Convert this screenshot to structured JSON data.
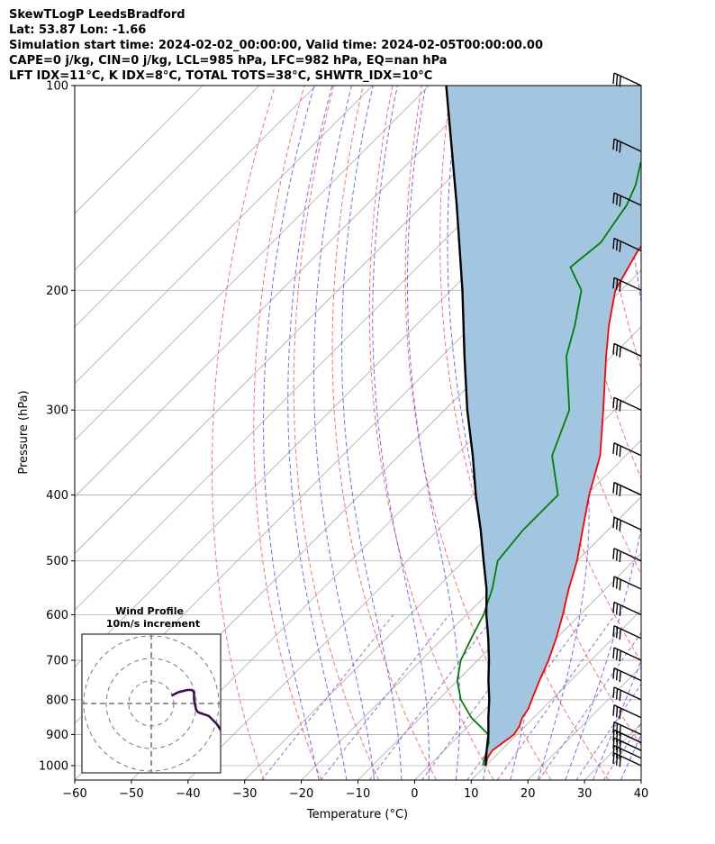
{
  "header": {
    "line1": "SkewTLogP LeedsBradford",
    "line2": "Lat: 53.87   Lon: -1.66",
    "line3": "Simulation start time: 2024-02-02_00:00:00, Valid time: 2024-02-05T00:00:00.00",
    "line4": "CAPE=0 j/kg, CIN=0 j/kg, LCL=985 hPa, LFC=982 hPa, EQ=nan hPa",
    "line5": "LFT IDX=11°C, K IDX=8°C, TOTAL TOTS=38°C, SHWTR_IDX=10°C"
  },
  "chart_data": {
    "type": "skewt-logp",
    "xlabel": "Temperature (°C)",
    "ylabel": "Pressure (hPa)",
    "xlim": [
      -60,
      40
    ],
    "ylim": [
      1050,
      100
    ],
    "y_scale": "log",
    "x_ticks": [
      -60,
      -50,
      -40,
      -30,
      -20,
      -10,
      0,
      10,
      20,
      30,
      40
    ],
    "x_tick_labels": [
      "−60",
      "−50",
      "−40",
      "−30",
      "−20",
      "−10",
      "0",
      "10",
      "20",
      "30",
      "40"
    ],
    "y_ticks": [
      1000,
      900,
      800,
      700,
      600,
      500,
      400,
      300,
      200,
      100
    ],
    "y_tick_labels": [
      "1000",
      "900",
      "800",
      "700",
      "600",
      "500",
      "400",
      "300",
      "200",
      "100"
    ],
    "grid": true,
    "colors": {
      "temperature": "#ff0000",
      "dewpoint": "#008000",
      "parcel": "#000000",
      "shade": "#a2c6df",
      "dry_adiabat": "#ff5555",
      "moist_adiabat": "#5555ff",
      "mixing_ratio": "#9955cc",
      "isotherm": "#aaaaaa"
    },
    "series": [
      {
        "role": "temperature",
        "points": [
          [
            1000,
            10
          ],
          [
            975,
            9
          ],
          [
            950,
            8.5
          ],
          [
            925,
            9
          ],
          [
            900,
            9.5
          ],
          [
            875,
            9
          ],
          [
            850,
            8
          ],
          [
            825,
            7.5
          ],
          [
            800,
            6.5
          ],
          [
            750,
            4.5
          ],
          [
            700,
            2.5
          ],
          [
            650,
            0
          ],
          [
            600,
            -3
          ],
          [
            550,
            -6.5
          ],
          [
            500,
            -10
          ],
          [
            450,
            -14.5
          ],
          [
            400,
            -19.5
          ],
          [
            350,
            -24.5
          ],
          [
            300,
            -32
          ],
          [
            250,
            -41
          ],
          [
            225,
            -46
          ],
          [
            200,
            -51
          ],
          [
            175,
            -54
          ],
          [
            150,
            -56
          ],
          [
            140,
            -55
          ],
          [
            130,
            -53
          ],
          [
            120,
            -51
          ],
          [
            110,
            -49
          ],
          [
            100,
            -47
          ]
        ]
      },
      {
        "role": "dewpoint",
        "points": [
          [
            1000,
            9.5
          ],
          [
            975,
            8.5
          ],
          [
            950,
            7.5
          ],
          [
            925,
            6.5
          ],
          [
            900,
            5
          ],
          [
            850,
            -1
          ],
          [
            800,
            -6
          ],
          [
            750,
            -10
          ],
          [
            700,
            -13
          ],
          [
            650,
            -15
          ],
          [
            600,
            -17
          ],
          [
            550,
            -20
          ],
          [
            500,
            -24
          ],
          [
            450,
            -25
          ],
          [
            400,
            -25
          ],
          [
            350,
            -33
          ],
          [
            300,
            -38
          ],
          [
            250,
            -48
          ],
          [
            225,
            -52
          ],
          [
            200,
            -57
          ],
          [
            185,
            -63
          ],
          [
            170,
            -62
          ],
          [
            160,
            -63
          ],
          [
            150,
            -64
          ],
          [
            140,
            -66
          ],
          [
            130,
            -69
          ],
          [
            120,
            -70
          ],
          [
            110,
            -71
          ],
          [
            100,
            -72
          ]
        ]
      },
      {
        "role": "parcel",
        "points": [
          [
            1000,
            10
          ],
          [
            950,
            7.5
          ],
          [
            900,
            5
          ],
          [
            850,
            2
          ],
          [
            800,
            -1
          ],
          [
            750,
            -4.5
          ],
          [
            700,
            -8
          ],
          [
            650,
            -12
          ],
          [
            600,
            -16.5
          ],
          [
            550,
            -21
          ],
          [
            500,
            -26.5
          ],
          [
            450,
            -32.5
          ],
          [
            400,
            -39.5
          ],
          [
            350,
            -47
          ],
          [
            300,
            -56
          ],
          [
            250,
            -66
          ],
          [
            200,
            -78
          ],
          [
            150,
            -94
          ],
          [
            100,
            -117
          ]
        ]
      }
    ],
    "wind_barbs": {
      "pressures": [
        1000,
        975,
        950,
        925,
        900,
        850,
        800,
        750,
        700,
        650,
        600,
        550,
        500,
        450,
        400,
        350,
        300,
        250,
        200,
        175,
        150,
        125,
        100
      ]
    },
    "hodograph": {
      "title": "Wind Profile",
      "subtitle": "10m/s increment",
      "rings": [
        10,
        20,
        30
      ],
      "color": "#3b0f4f",
      "points": [
        [
          31,
          -12
        ],
        [
          29,
          -9
        ],
        [
          27,
          -7
        ],
        [
          26,
          -6
        ],
        [
          25.5,
          -5.5
        ],
        [
          21,
          -4
        ],
        [
          20,
          -3
        ],
        [
          19.5,
          -1
        ],
        [
          19,
          2
        ],
        [
          19,
          5
        ],
        [
          18,
          6
        ],
        [
          16,
          6
        ],
        [
          14,
          5.5
        ],
        [
          12,
          5
        ],
        [
          9,
          3.5
        ]
      ]
    }
  }
}
